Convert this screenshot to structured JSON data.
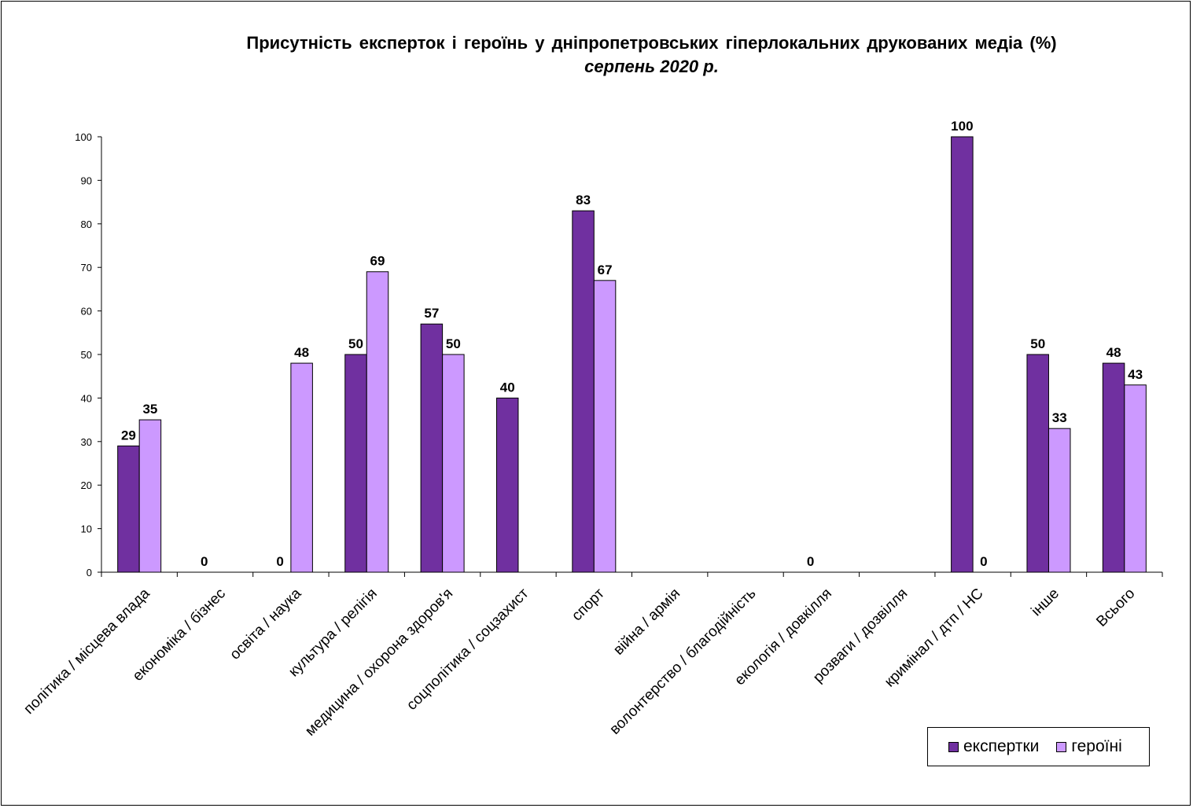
{
  "chart_data": {
    "type": "bar",
    "title": "Присутність експерток і героїнь у дніпропетровських гіперлокальних друкованих медіа (%)",
    "subtitle": "серпень 2020 р.",
    "xlabel": "",
    "ylabel": "",
    "ylim": [
      0,
      100
    ],
    "yticks": [
      "0",
      "10",
      "20",
      "30",
      "40",
      "50",
      "60",
      "70",
      "80",
      "90",
      "100"
    ],
    "categories": [
      "політика / місцева влада",
      "економіка / бізнес",
      "освіта / наука",
      "культура / релігія",
      "медицина / охорона здоров'я",
      "соцполітика / соцзахист",
      "спорт",
      "війна / армія",
      "волонтерство / благодійність",
      "екологія / довкілля",
      "розваги / дозвілля",
      "кримінал / дтп / НС",
      "інше",
      "Всього"
    ],
    "series": [
      {
        "name": "експертки",
        "color": "#7030a0",
        "values": [
          29,
          null,
          null,
          50,
          57,
          40,
          83,
          null,
          null,
          null,
          null,
          100,
          50,
          48
        ],
        "labels": [
          "29",
          "0",
          "0",
          "50",
          "57",
          "40",
          "83",
          "",
          "",
          "0",
          "",
          "100",
          "50",
          "48"
        ]
      },
      {
        "name": "героїні",
        "color": "#cc99ff",
        "values": [
          35,
          null,
          48,
          69,
          50,
          null,
          67,
          null,
          null,
          null,
          null,
          0,
          33,
          43
        ],
        "labels": [
          "35",
          "",
          "48",
          "69",
          "50",
          "",
          "67",
          "",
          "",
          "",
          "",
          "0",
          "33",
          "43"
        ]
      }
    ],
    "grid": false,
    "legend_position": "bottom-right"
  }
}
